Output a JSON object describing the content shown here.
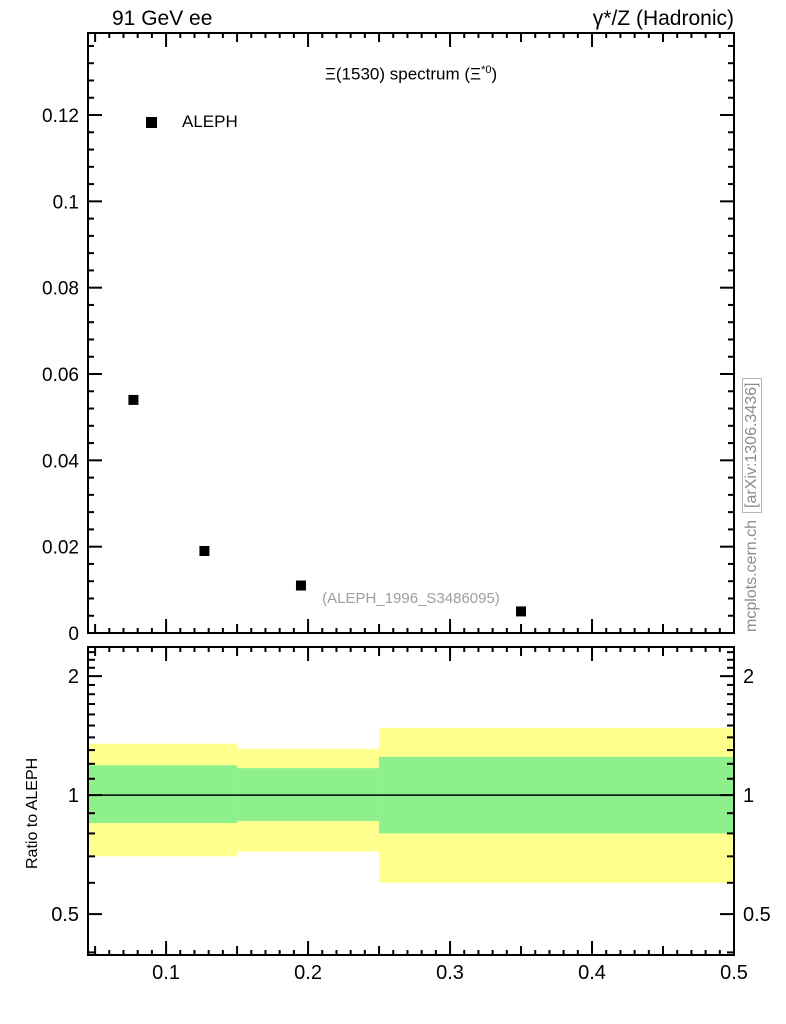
{
  "header": {
    "left": "91 GeV ee",
    "right": "γ*/Z (Hadronic)"
  },
  "title": {
    "pre": "Ξ(1530) spectrum (Ξ",
    "sup": "*0",
    "post": ")"
  },
  "legend": {
    "label": "ALEPH"
  },
  "watermark": "(ALEPH_1996_S3486095)",
  "side_text": {
    "site": "mcplots.cern.ch",
    "arxiv": "[arXiv:1306.3436]"
  },
  "ratio_axis_title": "Ratio to ALEPH",
  "chart_data": {
    "type": "scatter",
    "title": "Ξ(1530) spectrum (Ξ*0)",
    "top_left_label": "91 GeV ee",
    "top_right_label": "γ*/Z (Hadronic)",
    "main_panel": {
      "xlim": [
        0.045,
        0.5
      ],
      "ylim": [
        0,
        0.139
      ],
      "yticks": [
        0,
        0.02,
        0.04,
        0.06,
        0.08,
        0.1,
        0.12
      ],
      "ytick_labels": [
        "0",
        "0.02",
        "0.04",
        "0.06",
        "0.08",
        "0.1",
        "0.12"
      ],
      "y_minor_step": 0.004,
      "grid": false,
      "series": [
        {
          "name": "ALEPH",
          "marker": "filled-square",
          "color": "#000000",
          "points": [
            [
              0.077,
              0.054
            ],
            [
              0.127,
              0.019
            ],
            [
              0.195,
              0.011
            ],
            [
              0.35,
              0.005
            ]
          ]
        }
      ]
    },
    "ratio_panel": {
      "ylabel": "Ratio to ALEPH",
      "yscale": "log",
      "ylim": [
        0.394,
        2.37
      ],
      "yticks": [
        0.5,
        1,
        2
      ],
      "ytick_labels": [
        "0.5",
        "1",
        "2"
      ],
      "y_minor_ticks": [
        0.4,
        0.6,
        0.7,
        0.8,
        0.9,
        1.1,
        1.2,
        1.3,
        1.4,
        1.5,
        1.6,
        1.7,
        1.8,
        1.9,
        2.1,
        2.2,
        2.3
      ],
      "unity_line": 1,
      "band_colors": {
        "outer": "#ffff8e",
        "inner": "#8df08d"
      },
      "bands": [
        {
          "x0": 0.045,
          "x1": 0.15,
          "outer": [
            0.7,
            1.35
          ],
          "inner": [
            0.85,
            1.19
          ]
        },
        {
          "x0": 0.15,
          "x1": 0.25,
          "outer": [
            0.72,
            1.31
          ],
          "inner": [
            0.86,
            1.17
          ]
        },
        {
          "x0": 0.25,
          "x1": 0.5,
          "outer": [
            0.6,
            1.48
          ],
          "inner": [
            0.8,
            1.25
          ]
        }
      ]
    },
    "xticks": [
      0.1,
      0.2,
      0.3,
      0.4,
      0.5
    ],
    "xtick_labels": [
      "0.1",
      "0.2",
      "0.3",
      "0.4",
      "0.5"
    ],
    "x_minor_step": 0.01
  }
}
